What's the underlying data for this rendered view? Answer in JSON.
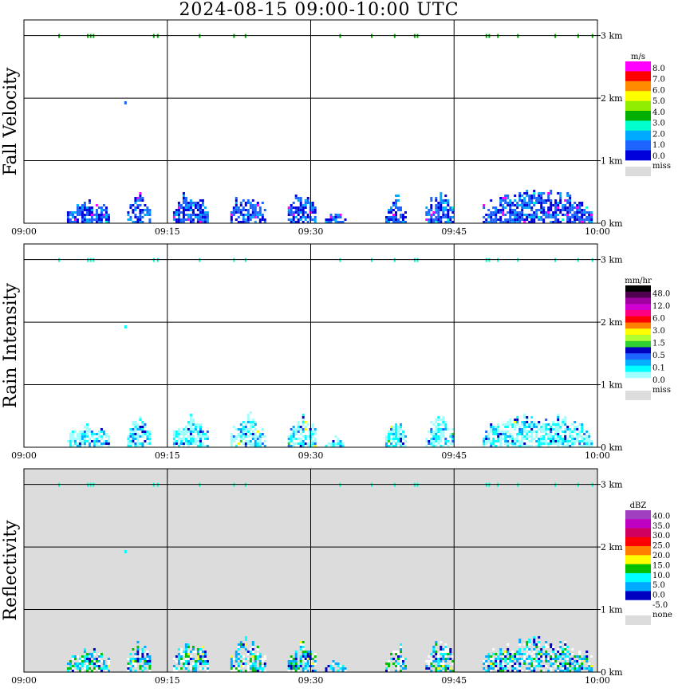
{
  "title": "2024-08-15   09:00-10:00 UTC",
  "time_ticks": [
    "09:00",
    "09:15",
    "09:30",
    "09:45",
    "10:00"
  ],
  "height_ticks": [
    "0 km",
    "1 km",
    "2 km",
    "3 km"
  ],
  "chart_data": [
    {
      "type": "heatmap",
      "ylabel": "Fall Velocity",
      "x_range": [
        "09:00",
        "10:00"
      ],
      "y_range_km": [
        0,
        3.25
      ],
      "grid": true,
      "legend_placement": "right",
      "colorbar": {
        "unit": "m/s",
        "labels": [
          "8.0",
          "7.0",
          "6.0",
          "5.0",
          "4.0",
          "3.0",
          "2.0",
          "1.0",
          "0.0"
        ],
        "colors": [
          "#ff00ff",
          "#ff0000",
          "#ff8c00",
          "#ffff00",
          "#90ee00",
          "#00b000",
          "#00ffcc",
          "#00aaff",
          "#1e64ff",
          "#0000dd"
        ],
        "miss_label": "miss",
        "miss_color": "#dcdcdc"
      },
      "background": "#ffffff"
    },
    {
      "type": "heatmap",
      "ylabel": "Rain Intensity",
      "x_range": [
        "09:00",
        "10:00"
      ],
      "y_range_km": [
        0,
        3.25
      ],
      "grid": true,
      "legend_placement": "right",
      "colorbar": {
        "unit": "mm/hr",
        "labels": [
          "48.0",
          "12.0",
          "6.0",
          "3.0",
          "1.5",
          "0.5",
          "0.1",
          "0.0"
        ],
        "colors": [
          "#000000",
          "#500050",
          "#a000a0",
          "#d000d0",
          "#ff0080",
          "#ff0000",
          "#ff8000",
          "#ffff00",
          "#b0ff30",
          "#30d030",
          "#0000c0",
          "#1e64ff",
          "#00b0ff",
          "#00ffff",
          "#a0ffff",
          "#ffffff"
        ],
        "miss_label": "miss",
        "miss_color": "#dcdcdc"
      },
      "background": "#ffffff"
    },
    {
      "type": "heatmap",
      "ylabel": "Reflectivity",
      "x_range": [
        "09:00",
        "10:00"
      ],
      "y_range_km": [
        0,
        3.25
      ],
      "grid": true,
      "legend_placement": "right",
      "colorbar": {
        "unit": "dBZ",
        "labels": [
          "40.0",
          "35.0",
          "30.0",
          "25.0",
          "20.0",
          "15.0",
          "10.0",
          "5.0",
          "0.0",
          "-5.0"
        ],
        "colors": [
          "#a040c0",
          "#c000c0",
          "#d00060",
          "#ff0000",
          "#ff8000",
          "#ffff00",
          "#00c000",
          "#00ffff",
          "#00aaff",
          "#0000c0",
          "#ffffff"
        ],
        "miss_label": "none",
        "miss_color": "#dcdcdc"
      },
      "background": "#dcdcdc"
    }
  ]
}
